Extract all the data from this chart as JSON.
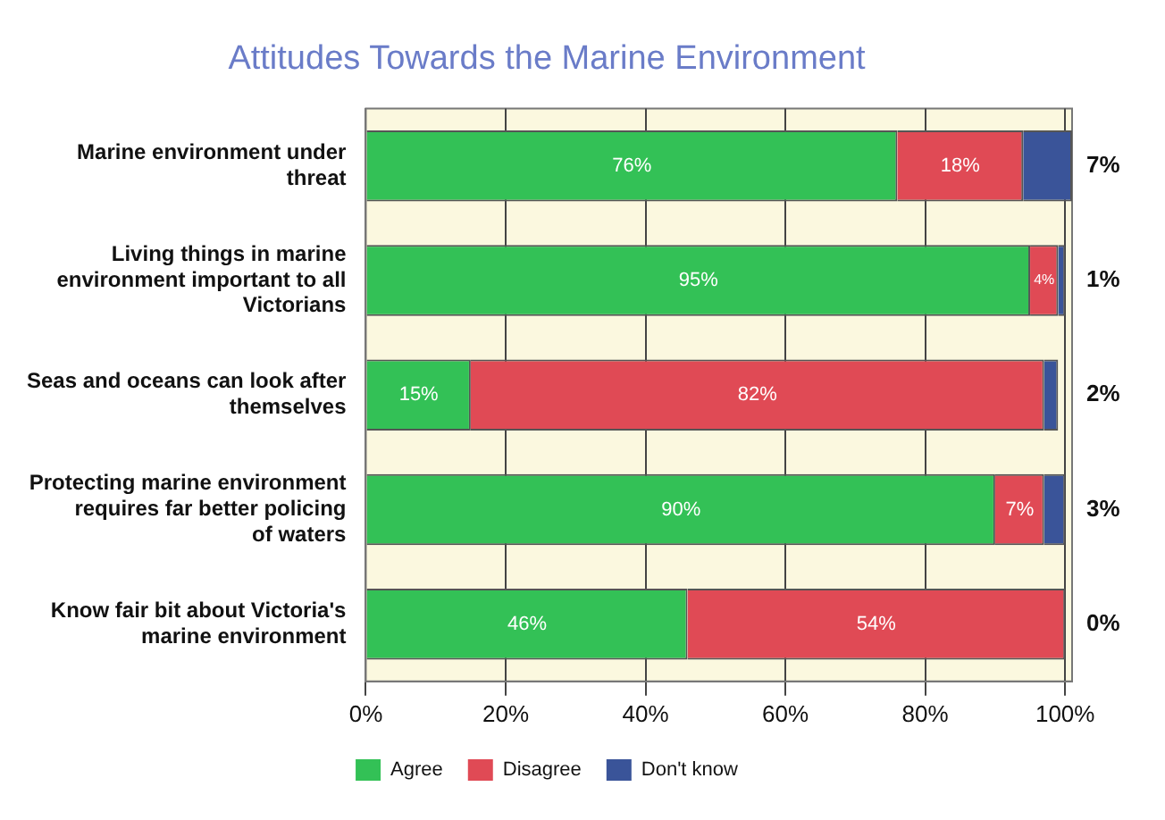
{
  "chart_data": {
    "type": "bar",
    "orientation": "horizontal",
    "stacked": true,
    "title": "Attitudes Towards the Marine Environment",
    "categories": [
      "Marine environment under threat",
      "Living things in marine environment important to all Victorians",
      "Seas and oceans can look after themselves",
      "Protecting marine environment requires far better policing of waters",
      "Know fair bit about Victoria's marine environment"
    ],
    "series": [
      {
        "name": "Agree",
        "color": "#33c156",
        "values": [
          76,
          95,
          15,
          90,
          46
        ],
        "value_labels": [
          "76%",
          "95%",
          "15%",
          "90%",
          "46%"
        ]
      },
      {
        "name": "Disagree",
        "color": "#e04a55",
        "values": [
          18,
          4,
          82,
          7,
          54
        ],
        "value_labels": [
          "18%",
          "4%",
          "82%",
          "7%",
          "54%"
        ]
      },
      {
        "name": "Don't know",
        "color": "#3a5499",
        "values": [
          7,
          1,
          2,
          3,
          0
        ],
        "value_labels": [
          "7%",
          "1%",
          "2%",
          "3%",
          "0%"
        ]
      }
    ],
    "xlim": [
      0,
      101
    ],
    "xticks": [
      {
        "value": 0,
        "label": "0%"
      },
      {
        "value": 20,
        "label": "20%"
      },
      {
        "value": 40,
        "label": "40%"
      },
      {
        "value": 60,
        "label": "60%"
      },
      {
        "value": 80,
        "label": "80%"
      },
      {
        "value": 100,
        "label": "100%"
      }
    ],
    "grid": "x",
    "legend": "bottom"
  }
}
